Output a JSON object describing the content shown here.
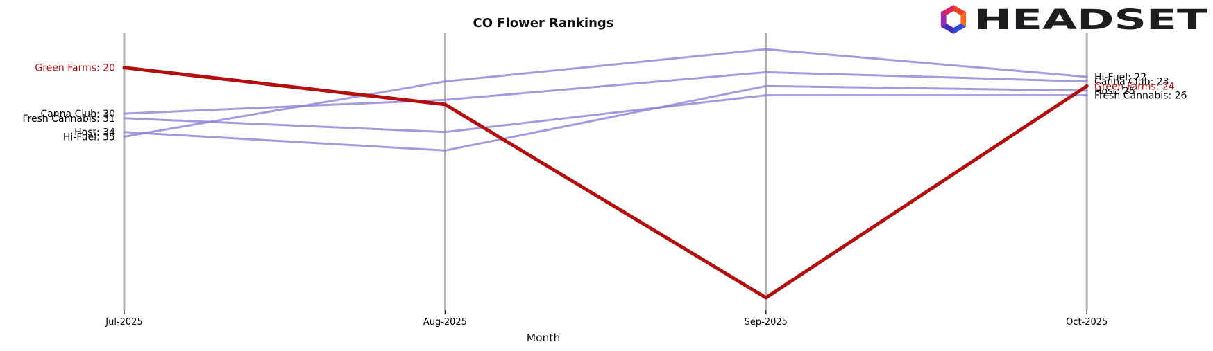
{
  "header": {
    "title": "CO Flower Rankings",
    "xlabel": "Month",
    "logo_text": "HEADSET"
  },
  "chart_data": {
    "type": "line",
    "subtype": "bump-ranking-chart",
    "title": "CO Flower Rankings",
    "xlabel": "Month",
    "ylabel": "",
    "x": [
      "Jul-2025",
      "Aug-2025",
      "Sep-2025",
      "Oct-2025"
    ],
    "y_axis": {
      "inverted": true,
      "visible": false,
      "approx_rank_range": [
        13,
        73
      ]
    },
    "legend": "none",
    "grid": "vertical-month-lines-only",
    "series": [
      {
        "name": "Green Farms",
        "values": [
          20,
          28,
          70,
          24
        ],
        "color": "#b30f0f",
        "width": 5,
        "opacity": 1,
        "highlight": true
      },
      {
        "name": "Canna Club",
        "values": [
          30,
          27,
          21,
          23
        ],
        "color": "#8f81d4",
        "width": 3,
        "opacity": 0.8,
        "highlight": false
      },
      {
        "name": "Fresh Cannabis",
        "values": [
          31,
          34,
          26,
          26
        ],
        "color": "#8f81d4",
        "width": 3,
        "opacity": 0.8,
        "highlight": false
      },
      {
        "name": "Host",
        "values": [
          34,
          38,
          24,
          25
        ],
        "color": "#8f81d4",
        "width": 3,
        "opacity": 0.8,
        "highlight": false
      },
      {
        "name": "Hi-Fuel",
        "values": [
          35,
          23,
          16,
          22
        ],
        "color": "#8f81d4",
        "width": 3,
        "opacity": 0.8,
        "highlight": false
      }
    ],
    "left_labels": [
      {
        "text": "Green Farms: 20",
        "rank": 20,
        "color": "#b30f0f"
      },
      {
        "text": "Canna Club: 30",
        "rank": 30,
        "color": "#000000"
      },
      {
        "text": "Fresh Cannabis: 31",
        "rank": 31,
        "color": "#000000"
      },
      {
        "text": "Host: 34",
        "rank": 34,
        "color": "#000000"
      },
      {
        "text": "Hi-Fuel: 35",
        "rank": 35,
        "color": "#000000"
      }
    ],
    "right_labels": [
      {
        "text": "Hi-Fuel: 22",
        "rank": 22,
        "color": "#000000"
      },
      {
        "text": "Canna Club: 23",
        "rank": 23,
        "color": "#000000"
      },
      {
        "text": "Host: 25",
        "rank": 25,
        "color": "#000000"
      },
      {
        "text": "Green Farms: 24",
        "rank": 24,
        "color": "#b30f0f"
      },
      {
        "text": "Fresh Cannabis: 26",
        "rank": 26,
        "color": "#000000"
      }
    ]
  },
  "colors": {
    "axis_line": "#b3b3b3",
    "tick": "#222222",
    "tick_label": "#000000",
    "logo_text": "#1d1d1f",
    "logo_segments": [
      "#ee4023",
      "#f2691e",
      "#2e4bd8",
      "#4630b8",
      "#9c27b0",
      "#d92662"
    ]
  }
}
